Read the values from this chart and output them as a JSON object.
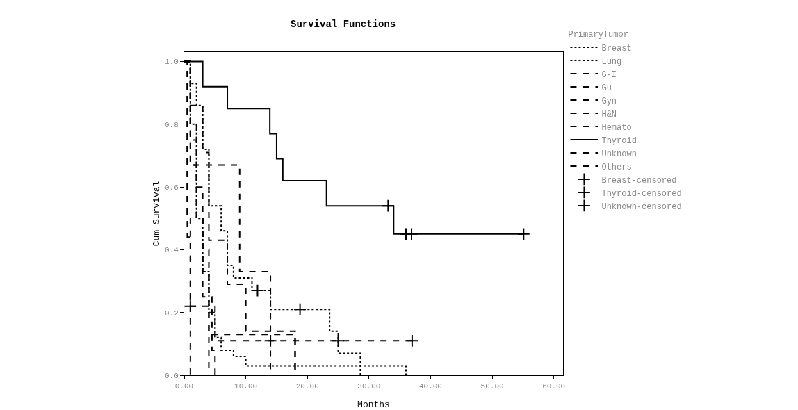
{
  "chart_data": {
    "type": "step",
    "title": "Survival Functions",
    "xlabel": "Months",
    "ylabel": "Cum Survival",
    "legend_title": "PrimaryTumor",
    "xlim": [
      0,
      61.5
    ],
    "ylim": [
      0,
      1.03
    ],
    "xticks": [
      {
        "value": 0,
        "label": "0.00"
      },
      {
        "value": 10,
        "label": "10.00"
      },
      {
        "value": 20,
        "label": "20.00"
      },
      {
        "value": 30,
        "label": "30.00"
      },
      {
        "value": 40,
        "label": "40.00"
      },
      {
        "value": 50,
        "label": "50.00"
      },
      {
        "value": 60,
        "label": "60.00"
      }
    ],
    "yticks": [
      {
        "value": 0,
        "label": "0.0"
      },
      {
        "value": 0.2,
        "label": "0.2"
      },
      {
        "value": 0.4,
        "label": "0.4"
      },
      {
        "value": 0.6,
        "label": "0.6"
      },
      {
        "value": 0.8,
        "label": "0.8"
      },
      {
        "value": 1,
        "label": "1.0"
      }
    ],
    "grid": false,
    "legend": "right",
    "series": [
      {
        "name": "Breast",
        "color": "#000000",
        "line_style": "dotted",
        "x": [
          0,
          1,
          2,
          3,
          4,
          6,
          7,
          8,
          11,
          14,
          23.6,
          25,
          28.6
        ],
        "values": [
          1,
          0.93,
          0.86,
          0.72,
          0.54,
          0.46,
          0.35,
          0.31,
          0.27,
          0.21,
          0.14,
          0.07,
          0
        ]
      },
      {
        "name": "Lung",
        "color": "#000000",
        "line_style": "dotted",
        "x": [
          0,
          1,
          2,
          3,
          4,
          5,
          6,
          8,
          10,
          36
        ],
        "values": [
          1,
          0.8,
          0.5,
          0.33,
          0.2,
          0.12,
          0.08,
          0.06,
          0.03,
          0
        ]
      },
      {
        "name": "G-I",
        "color": "#000000",
        "line_style": "dashed",
        "x": [
          0,
          1,
          2,
          3,
          4,
          4.5,
          5
        ],
        "values": [
          1,
          0.8,
          0.6,
          0.4,
          0.25,
          0.08,
          0
        ]
      },
      {
        "name": "Gu",
        "color": "#000000",
        "line_style": "dashed",
        "x": [
          0,
          1,
          2,
          3,
          4,
          18
        ],
        "values": [
          1,
          0.75,
          0.5,
          0.25,
          0.13,
          0
        ]
      },
      {
        "name": "Gyn",
        "color": "#000000",
        "line_style": "dashed",
        "x": [
          0,
          1,
          9,
          14
        ],
        "values": [
          1,
          0.67,
          0.33,
          0
        ]
      },
      {
        "name": "H&N",
        "color": "#000000",
        "line_style": "dashed",
        "x": [
          0,
          1,
          3,
          4,
          7,
          10,
          18
        ],
        "values": [
          1,
          0.86,
          0.71,
          0.43,
          0.29,
          0.14,
          0
        ]
      },
      {
        "name": "Hemato",
        "color": "#000000",
        "line_style": "dashed",
        "x": [
          0,
          1,
          2,
          3,
          4
        ],
        "values": [
          1,
          0.67,
          0.5,
          0.33,
          0
        ]
      },
      {
        "name": "Thyroid",
        "color": "#000000",
        "line_style": "solid",
        "x": [
          0,
          3,
          7,
          13.9,
          15,
          16,
          23.1,
          34,
          55.1
        ],
        "values": [
          1,
          0.92,
          0.85,
          0.77,
          0.69,
          0.62,
          0.54,
          0.45,
          0.45
        ]
      },
      {
        "name": "Unknown",
        "color": "#000000",
        "line_style": "dashed",
        "x": [
          0,
          0.5,
          1,
          5,
          37
        ],
        "values": [
          1,
          0.44,
          0.22,
          0.11,
          0.11
        ]
      },
      {
        "name": "Others",
        "color": "#000000",
        "line_style": "dashed",
        "x": [
          0,
          0.5,
          1
        ],
        "values": [
          1,
          0.5,
          0
        ]
      },
      {
        "name": "Breast-censored",
        "type": "scatter",
        "marker": "cross",
        "color": "#000000",
        "x": [
          11.9,
          18.8
        ],
        "values": [
          0.27,
          0.21
        ]
      },
      {
        "name": "Thyroid-censored",
        "type": "scatter",
        "marker": "cross",
        "color": "#000000",
        "x": [
          33.1,
          36,
          36.9,
          55.1
        ],
        "values": [
          0.54,
          0.45,
          0.45,
          0.45
        ]
      },
      {
        "name": "Unknown-censored",
        "type": "scatter",
        "marker": "cross",
        "color": "#000000",
        "x": [
          1,
          14,
          25,
          37
        ],
        "values": [
          0.22,
          0.11,
          0.11,
          0.11
        ]
      }
    ]
  }
}
